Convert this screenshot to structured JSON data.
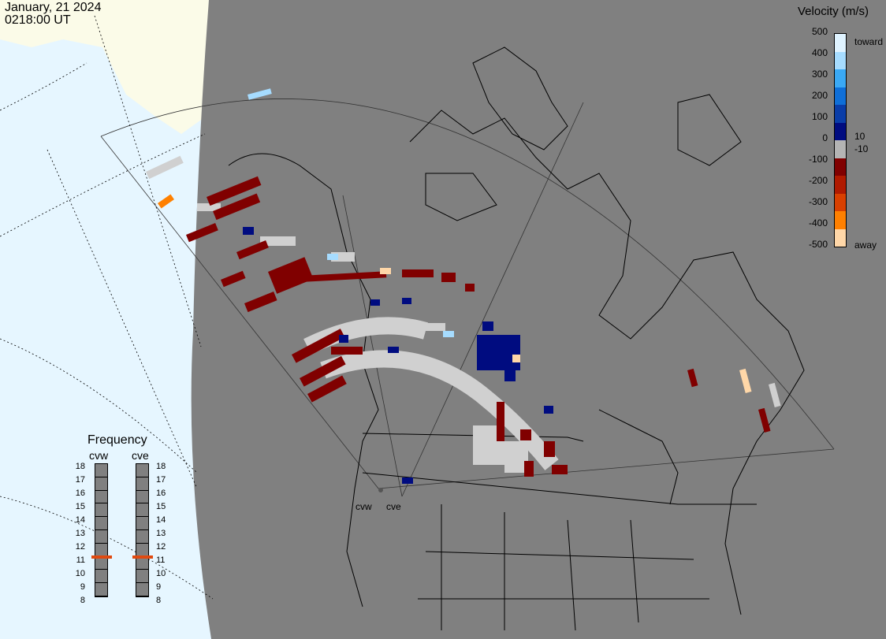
{
  "header": {
    "date": "January, 21 2024",
    "time": "0218:00 UT"
  },
  "colorbar": {
    "title": "Velocity (m/s)",
    "ticks": [
      "500",
      "400",
      "300",
      "200",
      "100",
      "0",
      "-100",
      "-200",
      "-300",
      "-400",
      "-500"
    ],
    "tick_values": [
      500,
      400,
      300,
      200,
      100,
      0,
      -100,
      -200,
      -300,
      -400,
      -500
    ],
    "side_labels": {
      "toward": "toward",
      "away": "away",
      "pos_threshold": "10",
      "neg_threshold": "-10"
    },
    "colors": [
      "#dff3ff",
      "#a6dcff",
      "#3aa9f5",
      "#0f6fd8",
      "#0a3da8",
      "#000c80",
      "#b4b4b4",
      "#800000",
      "#b01a00",
      "#d94000",
      "#ff8000",
      "#ffd7a8"
    ]
  },
  "frequency": {
    "title": "Frequency",
    "radars": [
      "cvw",
      "cve"
    ],
    "scale": [
      "18",
      "17",
      "16",
      "15",
      "14",
      "13",
      "12",
      "11",
      "10",
      "9",
      "8"
    ],
    "values": {
      "cvw": 11,
      "cve": 11
    },
    "marker_color": "#e04a10"
  },
  "radars": [
    {
      "code": "cvw",
      "label": "cvw"
    },
    {
      "code": "cve",
      "label": "cve"
    }
  ],
  "colors": {
    "ocean": "#e6f6ff",
    "land_day": "#fdfdee",
    "night": "#808080",
    "ground_scatter": "#d0d0d0"
  }
}
